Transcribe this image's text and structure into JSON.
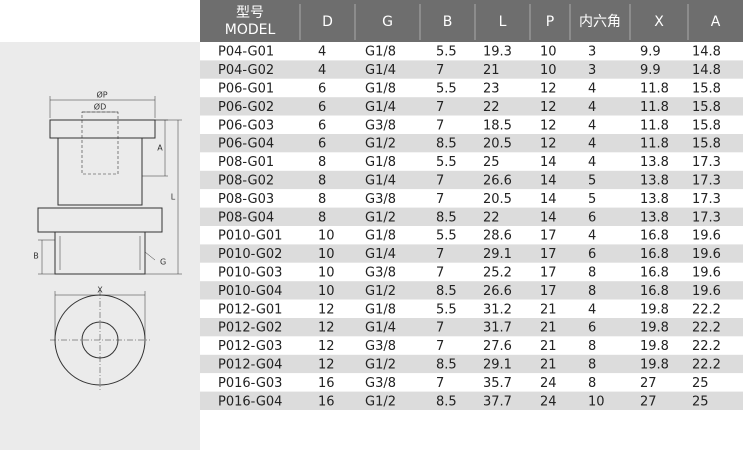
{
  "header": {
    "columns": [
      {
        "title": "型号",
        "subtitle": "MODEL"
      },
      "D",
      "G",
      "B",
      "L",
      "P",
      "内六角",
      "X",
      "A"
    ]
  },
  "table": {
    "rows": [
      [
        "P04-G01",
        "4",
        "G1/8",
        "5.5",
        "19.3",
        "10",
        "3",
        "9.9",
        "14.8"
      ],
      [
        "P04-G02",
        "4",
        "G1/4",
        "7",
        "21",
        "10",
        "3",
        "9.9",
        "14.8"
      ],
      [
        "P06-G01",
        "6",
        "G1/8",
        "5.5",
        "23",
        "12",
        "4",
        "11.8",
        "15.8"
      ],
      [
        "P06-G02",
        "6",
        "G1/4",
        "7",
        "22",
        "12",
        "4",
        "11.8",
        "15.8"
      ],
      [
        "P06-G03",
        "6",
        "G3/8",
        "7",
        "18.5",
        "12",
        "4",
        "11.8",
        "15.8"
      ],
      [
        "P06-G04",
        "6",
        "G1/2",
        "8.5",
        "20.5",
        "12",
        "4",
        "11.8",
        "15.8"
      ],
      [
        "P08-G01",
        "8",
        "G1/8",
        "5.5",
        "25",
        "14",
        "4",
        "13.8",
        "17.3"
      ],
      [
        "P08-G02",
        "8",
        "G1/4",
        "7",
        "26.6",
        "14",
        "5",
        "13.8",
        "17.3"
      ],
      [
        "P08-G03",
        "8",
        "G3/8",
        "7",
        "20.5",
        "14",
        "5",
        "13.8",
        "17.3"
      ],
      [
        "P08-G04",
        "8",
        "G1/2",
        "8.5",
        "22",
        "14",
        "6",
        "13.8",
        "17.3"
      ],
      [
        "P010-G01",
        "10",
        "G1/8",
        "5.5",
        "28.6",
        "17",
        "4",
        "16.8",
        "19.6"
      ],
      [
        "P010-G02",
        "10",
        "G1/4",
        "7",
        "29.1",
        "17",
        "6",
        "16.8",
        "19.6"
      ],
      [
        "P010-G03",
        "10",
        "G3/8",
        "7",
        "25.2",
        "17",
        "8",
        "16.8",
        "19.6"
      ],
      [
        "P010-G04",
        "10",
        "G1/2",
        "8.5",
        "26.6",
        "17",
        "8",
        "16.8",
        "19.6"
      ],
      [
        "P012-G01",
        "12",
        "G1/8",
        "5.5",
        "31.2",
        "21",
        "4",
        "19.8",
        "22.2"
      ],
      [
        "P012-G02",
        "12",
        "G1/4",
        "7",
        "31.7",
        "21",
        "6",
        "19.8",
        "22.2"
      ],
      [
        "P012-G03",
        "12",
        "G3/8",
        "7",
        "27.6",
        "21",
        "8",
        "19.8",
        "22.2"
      ],
      [
        "P012-G04",
        "12",
        "G1/2",
        "8.5",
        "29.1",
        "21",
        "8",
        "19.8",
        "22.2"
      ],
      [
        "P016-G03",
        "16",
        "G3/8",
        "7",
        "35.7",
        "24",
        "8",
        "27",
        "25"
      ],
      [
        "P016-G04",
        "16",
        "G1/2",
        "8.5",
        "37.7",
        "24",
        "10",
        "27",
        "25"
      ]
    ]
  },
  "drawing": {
    "labels": {
      "p": "ØP",
      "d": "ØD",
      "a": "A",
      "l": "L",
      "b": "B",
      "g": "G",
      "x": "X"
    }
  }
}
